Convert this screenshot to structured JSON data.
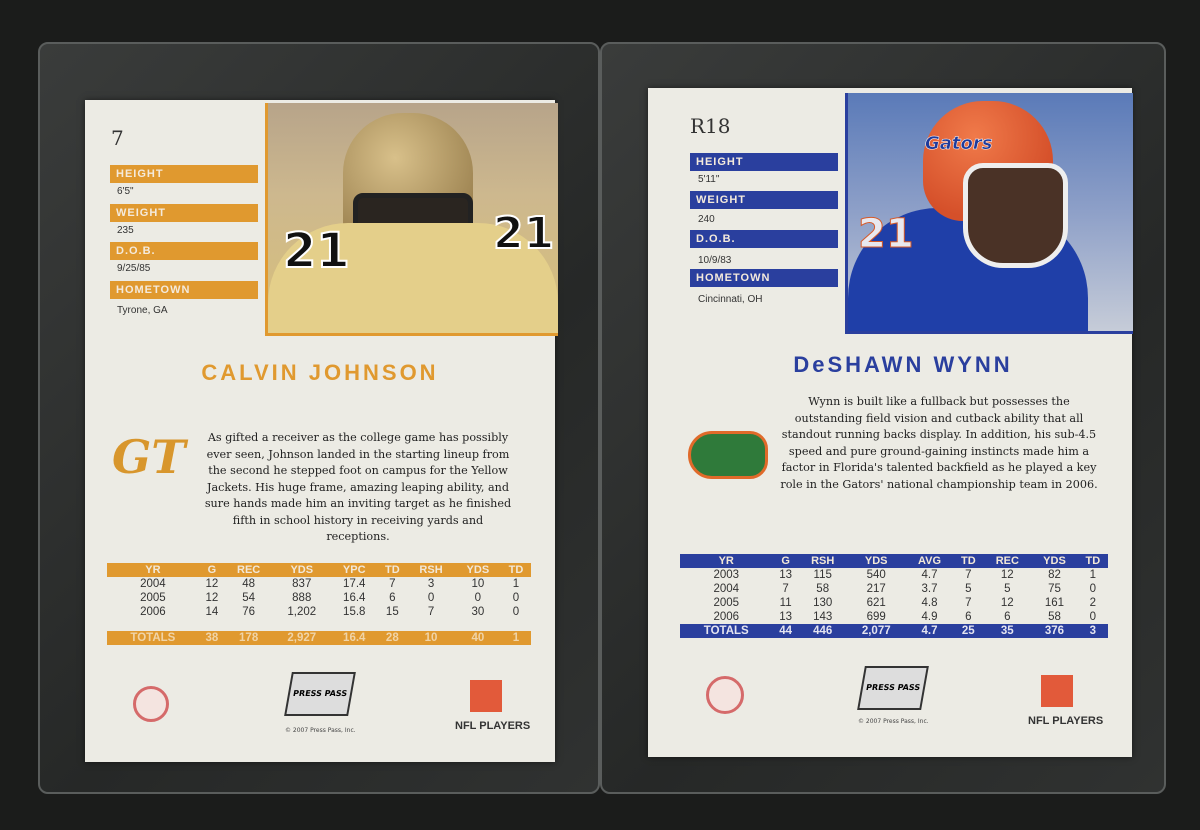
{
  "colors": {
    "background": "#1b1c1b",
    "left_accent": "#e0992f",
    "right_accent": "#2a3f9e"
  },
  "cards": [
    {
      "number": "7",
      "labels": [
        "HEIGHT",
        "WEIGHT",
        "D.O.B.",
        "HOMETOWN"
      ],
      "values": [
        "6'5\"",
        "235",
        "9/25/85",
        "Tyrone, GA"
      ],
      "name": "CALVIN JOHNSON",
      "team_logo": "GT",
      "bio": "As gifted a receiver as the college game has possibly ever seen, Johnson landed in the starting lineup from the second he stepped foot on campus for the Yellow Jackets. His huge frame, amazing leaping ability, and sure hands made him an inviting target as he finished fifth in school history in receiving yards and receptions.",
      "stats_header": [
        "YR",
        "G",
        "REC",
        "YDS",
        "YPC",
        "TD",
        "RSH",
        "YDS",
        "TD"
      ],
      "stats_rows": [
        [
          "2004",
          "12",
          "48",
          "837",
          "17.4",
          "7",
          "3",
          "10",
          "1"
        ],
        [
          "2005",
          "12",
          "54",
          "888",
          "16.4",
          "6",
          "0",
          "0",
          "0"
        ],
        [
          "2006",
          "14",
          "76",
          "1,202",
          "15.8",
          "15",
          "7",
          "30",
          "0"
        ]
      ],
      "totals": [
        "TOTALS",
        "38",
        "178",
        "2,927",
        "16.4",
        "28",
        "10",
        "40",
        "1"
      ],
      "copyright": "© 2007 Press Pass, Inc.",
      "brand": "PRESS PASS",
      "nfl": "NFL PLAYERS",
      "jersey": "21"
    },
    {
      "number": "R18",
      "labels": [
        "HEIGHT",
        "WEIGHT",
        "D.O.B.",
        "HOMETOWN"
      ],
      "values": [
        "5'11\"",
        "240",
        "10/9/83",
        "Cincinnati, OH"
      ],
      "name": "DeSHAWN WYNN",
      "team_logo": "gator-head",
      "bio": "Wynn is built like a fullback but possesses the outstanding field vision and cutback ability that all standout running backs display. In addition, his sub-4.5 speed and pure ground-gaining instincts made him a factor in Florida's talented backfield as he played a key role in the Gators' national championship team in 2006.",
      "stats_header": [
        "YR",
        "G",
        "RSH",
        "YDS",
        "AVG",
        "TD",
        "REC",
        "YDS",
        "TD"
      ],
      "stats_rows": [
        [
          "2003",
          "13",
          "115",
          "540",
          "4.7",
          "7",
          "12",
          "82",
          "1"
        ],
        [
          "2004",
          "7",
          "58",
          "217",
          "3.7",
          "5",
          "5",
          "75",
          "0"
        ],
        [
          "2005",
          "11",
          "130",
          "621",
          "4.8",
          "7",
          "12",
          "161",
          "2"
        ],
        [
          "2006",
          "13",
          "143",
          "699",
          "4.9",
          "6",
          "6",
          "58",
          "0"
        ]
      ],
      "totals": [
        "TOTALS",
        "44",
        "446",
        "2,077",
        "4.7",
        "25",
        "35",
        "376",
        "3"
      ],
      "copyright": "© 2007 Press Pass, Inc.",
      "brand": "PRESS PASS",
      "nfl": "NFL PLAYERS",
      "jersey": "21",
      "helmet": "Gators"
    }
  ]
}
